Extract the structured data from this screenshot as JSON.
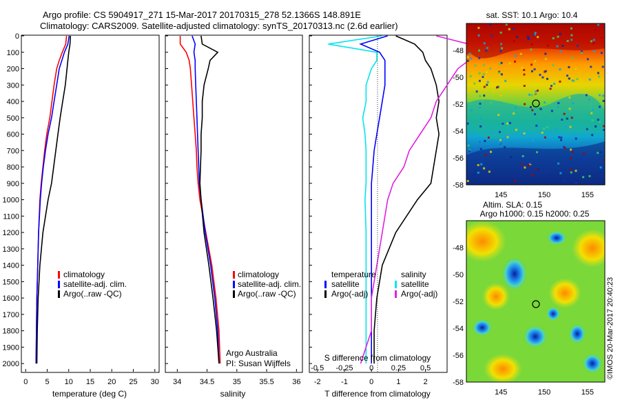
{
  "header": {
    "line1": "Argo profile: CS 5904917_271 15-Mar-2017 20170315_278 52.1366S 148.891E",
    "line2": "Climatology: CARS2009. Satellite-adjusted climatology: synTS_20170313.nc (2.6d earlier)"
  },
  "credit": "©IMOS 20-Mar-2017 20:40:23",
  "colors": {
    "climatology": "#ff0000",
    "satellite": "#0000ff",
    "argo": "#000000",
    "salinity_sat": "#00e5ee",
    "salinity_argo": "#e020e0"
  },
  "chart_data": [
    {
      "type": "line",
      "title": "",
      "xlabel": "temperature (deg C)",
      "ylabel": "",
      "xlim": [
        -1,
        31
      ],
      "ylim": [
        2050,
        0
      ],
      "xticks": [
        "0",
        "5",
        "10",
        "15",
        "20",
        "25",
        "30"
      ],
      "yticks": [
        "0",
        "100",
        "200",
        "300",
        "400",
        "500",
        "600",
        "700",
        "800",
        "900",
        "1000",
        "1100",
        "1200",
        "1300",
        "1400",
        "1500",
        "1600",
        "1700",
        "1800",
        "1900",
        "2000"
      ],
      "depth": [
        0,
        50,
        100,
        150,
        200,
        300,
        400,
        500,
        600,
        700,
        800,
        900,
        1000,
        1200,
        1400,
        1600,
        1800,
        2000
      ],
      "series": [
        {
          "name": "climatology",
          "values": [
            9.5,
            9.3,
            8.5,
            7.8,
            7.2,
            6.6,
            6.1,
            5.6,
            4.9,
            4.4,
            4.0,
            3.6,
            3.3,
            3.0,
            2.8,
            2.6,
            2.5,
            2.4
          ]
        },
        {
          "name": "satellite-adj. clim.",
          "values": [
            10.1,
            9.8,
            9.0,
            8.4,
            7.8,
            7.2,
            6.6,
            6.0,
            5.2,
            4.6,
            4.1,
            3.7,
            3.4,
            3.0,
            2.8,
            2.6,
            2.5,
            2.4
          ]
        },
        {
          "name": "Argo(..raw -QC)",
          "values": [
            10.4,
            10.3,
            10.0,
            9.8,
            9.6,
            9.2,
            8.6,
            8.0,
            7.5,
            7.0,
            6.5,
            6.0,
            5.2,
            4.0,
            3.3,
            2.9,
            2.7,
            2.6
          ]
        }
      ],
      "legend": [
        "climatology",
        "satellite-adj. clim.",
        "Argo(..raw -QC)"
      ]
    },
    {
      "type": "line",
      "title": "",
      "xlabel": "salinity",
      "ylabel": "",
      "xlim": [
        33.8,
        36.1
      ],
      "ylim": [
        2050,
        0
      ],
      "xticks": [
        "34",
        "34.5",
        "35",
        "35.5",
        "36"
      ],
      "depth": [
        0,
        50,
        100,
        150,
        200,
        300,
        400,
        500,
        600,
        700,
        800,
        900,
        1000,
        1200,
        1400,
        1600,
        1800,
        2000
      ],
      "series": [
        {
          "name": "climatology",
          "values": [
            34.05,
            34.05,
            34.15,
            34.2,
            34.22,
            34.24,
            34.26,
            34.28,
            34.3,
            34.32,
            34.33,
            34.35,
            34.38,
            34.48,
            34.58,
            34.65,
            34.7,
            34.72
          ]
        },
        {
          "name": "satellite-adj. clim.",
          "values": [
            34.25,
            34.3,
            34.28,
            34.3,
            34.3,
            34.31,
            34.32,
            34.33,
            34.34,
            34.35,
            34.36,
            34.37,
            34.4,
            34.47,
            34.56,
            34.63,
            34.68,
            34.7
          ]
        },
        {
          "name": "Argo(..raw -QC)",
          "values": [
            34.4,
            34.42,
            34.68,
            34.55,
            34.52,
            34.45,
            34.42,
            34.42,
            34.4,
            34.4,
            34.39,
            34.38,
            34.4,
            34.45,
            34.53,
            34.6,
            34.66,
            34.7
          ]
        }
      ],
      "legend": [
        "climatology",
        "satellite-adj. clim.",
        "Argo(..raw -QC)"
      ],
      "annotations": [
        "Argo Australia",
        "PI: Susan Wijffels"
      ]
    },
    {
      "type": "line",
      "title": "",
      "xlabel": "T difference from climatology",
      "x2label": "S difference from climatology",
      "xlim": [
        -2.3,
        2.8
      ],
      "ylim": [
        2050,
        0
      ],
      "xticks": [
        "-2",
        "-1",
        "0",
        "1",
        "2"
      ],
      "x2ticks": [
        "-0.5",
        "-0.25",
        "0",
        "0.25",
        "0.5"
      ],
      "depth": [
        0,
        50,
        100,
        150,
        200,
        300,
        400,
        500,
        600,
        700,
        800,
        900,
        1000,
        1200,
        1400,
        1600,
        1800,
        2000
      ],
      "series": [
        {
          "name": "temperature satellite",
          "values": [
            0.6,
            -0.4,
            0.3,
            0.5,
            0.5,
            0.5,
            0.4,
            0.3,
            0.2,
            0.1,
            0.05,
            0.0,
            0.0,
            0.0,
            0.0,
            0.0,
            0.0,
            0.0
          ]
        },
        {
          "name": "temperature Argo(-adj)",
          "values": [
            0.9,
            1.6,
            1.9,
            2.0,
            2.2,
            2.4,
            2.5,
            2.4,
            2.5,
            2.4,
            2.3,
            2.2,
            1.7,
            0.9,
            0.4,
            0.2,
            0.1,
            0.1
          ]
        },
        {
          "name": "salinity satellite",
          "values": [
            0.1,
            -0.4,
            0.05,
            0.05,
            0.0,
            -0.05,
            -0.05,
            -0.08,
            -0.06,
            -0.05,
            -0.05,
            -0.05,
            -0.06,
            -0.05,
            -0.05,
            -0.05,
            -0.05,
            -0.05
          ]
        },
        {
          "name": "salinity Argo(-adj)",
          "values": [
            0.6,
            0.9,
            1.0,
            0.9,
            0.8,
            0.7,
            0.6,
            0.55,
            0.45,
            0.35,
            0.3,
            0.2,
            0.15,
            0.1,
            0.05,
            0.0,
            0.0,
            -0.1
          ]
        }
      ],
      "legend": {
        "temperature_heading": "temperature",
        "salinity_heading": "salinity",
        "items": [
          "satellite",
          "Argo(-adj)",
          "satellite",
          "Argo(-adj)"
        ]
      }
    },
    {
      "type": "heatmap",
      "title": "sat. SST: 10.1 Argo: 10.4",
      "xticks": [
        "145",
        "150",
        "155"
      ],
      "yticks": [
        "-48",
        "-50",
        "-52",
        "-54",
        "-56",
        "-58"
      ],
      "xlim": [
        141,
        157
      ],
      "ylim": [
        -58,
        -46
      ],
      "marker": {
        "lon": 148.891,
        "lat": -52.1366
      }
    },
    {
      "type": "heatmap",
      "title": "Altim. SLA: 0.15",
      "subtitle": "Argo h1000: 0.15 h2000: 0.25",
      "xticks": [
        "145",
        "150",
        "155"
      ],
      "yticks": [
        "-48",
        "-50",
        "-52",
        "-54",
        "-56",
        "-58"
      ],
      "xlim": [
        141,
        157
      ],
      "ylim": [
        -58,
        -46
      ],
      "marker": {
        "lon": 148.891,
        "lat": -52.1366
      }
    }
  ]
}
